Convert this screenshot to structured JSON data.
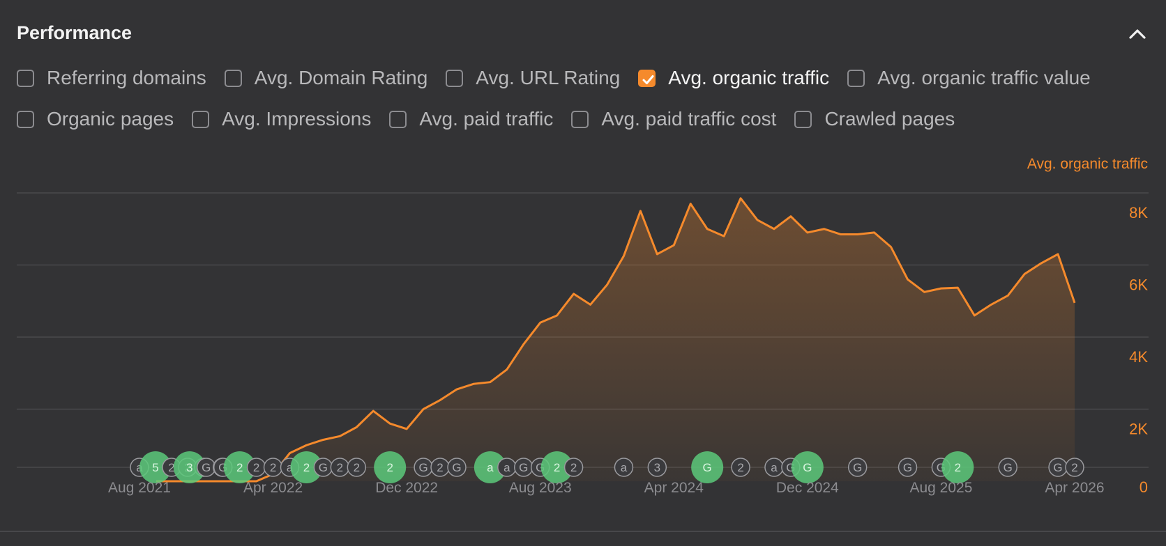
{
  "panel": {
    "title": "Performance",
    "collapse_icon": "chevron-up-icon"
  },
  "metrics_row1": [
    {
      "label": "Referring domains",
      "checked": false
    },
    {
      "label": "Avg. Domain Rating",
      "checked": false
    },
    {
      "label": "Avg. URL Rating",
      "checked": false
    },
    {
      "label": "Avg. organic traffic",
      "checked": true
    },
    {
      "label": "Avg. organic traffic value",
      "checked": false
    }
  ],
  "metrics_row2": [
    {
      "label": "Organic pages",
      "checked": false
    },
    {
      "label": "Avg. Impressions",
      "checked": false
    },
    {
      "label": "Avg. paid traffic",
      "checked": false
    },
    {
      "label": "Avg. paid traffic cost",
      "checked": false
    },
    {
      "label": "Crawled pages",
      "checked": false
    }
  ],
  "colors": {
    "accent": "#f58a2c",
    "background": "#333335",
    "grid": "#4a4a4d",
    "annotation_green": "#5cc97a",
    "annotation_dark_green": "#5a8f3e",
    "annotation_outline": "#9a9a9e"
  },
  "chart_data": {
    "type": "area",
    "title": "",
    "ylabel": "Avg. organic traffic",
    "xlabel": "",
    "ylim": [
      0,
      8000
    ],
    "grid": true,
    "y_ticks": [
      "0",
      "2K",
      "4K",
      "6K",
      "8K"
    ],
    "y_tick_values": [
      0,
      2000,
      4000,
      6000,
      8000
    ],
    "x_ticks": [
      "Aug 2021",
      "Apr 2022",
      "Dec 2022",
      "Aug 2023",
      "Apr 2024",
      "Dec 2024",
      "Aug 2025",
      "Apr 2026"
    ],
    "x_tick_dates": [
      "2021-08",
      "2022-04",
      "2022-12",
      "2023-08",
      "2024-04",
      "2024-12",
      "2025-08",
      "2026-04"
    ],
    "series": [
      {
        "name": "Avg. organic traffic",
        "x": [
          "2021-09",
          "2021-10",
          "2021-11",
          "2021-12",
          "2022-01",
          "2022-02",
          "2022-03",
          "2022-04",
          "2022-05",
          "2022-06",
          "2022-07",
          "2022-08",
          "2022-09",
          "2022-10",
          "2022-11",
          "2022-12",
          "2023-01",
          "2023-02",
          "2023-03",
          "2023-04",
          "2023-05",
          "2023-06",
          "2023-07",
          "2023-08",
          "2023-09",
          "2023-10",
          "2023-11",
          "2023-12",
          "2024-01",
          "2024-02",
          "2024-03",
          "2024-04",
          "2024-05",
          "2024-06",
          "2024-07",
          "2024-08",
          "2024-09",
          "2024-10",
          "2024-11",
          "2024-12",
          "2025-01",
          "2025-02",
          "2025-03",
          "2025-04",
          "2025-05",
          "2025-06",
          "2025-07",
          "2025-08",
          "2025-09",
          "2025-10",
          "2025-11",
          "2025-12",
          "2026-01",
          "2026-02",
          "2026-03",
          "2026-04"
        ],
        "values": [
          0,
          0,
          0,
          0,
          0,
          0,
          0,
          200,
          780,
          1000,
          1150,
          1250,
          1500,
          1950,
          1600,
          1450,
          2000,
          2250,
          2550,
          2700,
          2750,
          3100,
          3800,
          4400,
          4600,
          5200,
          4900,
          5450,
          6250,
          7500,
          6300,
          6550,
          7700,
          7000,
          6800,
          7850,
          7250,
          7000,
          7350,
          6900,
          7000,
          6850,
          6850,
          6900,
          6500,
          5600,
          5250,
          5350,
          5370,
          4600,
          4900,
          5150,
          5750,
          6050,
          6300,
          4950
        ]
      }
    ],
    "event_markers": [
      {
        "date": "2021-08",
        "label": "a"
      },
      {
        "date": "2021-08",
        "label": "5"
      },
      {
        "date": "2021-08",
        "label": "2"
      },
      {
        "date": "2021-08",
        "label": "2"
      },
      {
        "date": "2021-08",
        "label": "a"
      },
      {
        "date": "2021-11",
        "label": "3"
      },
      {
        "date": "2021-12",
        "label": "G"
      },
      {
        "date": "2021-12",
        "label": "a"
      },
      {
        "date": "2022-01",
        "label": "G"
      },
      {
        "date": "2022-02",
        "label": "2"
      },
      {
        "date": "2022-03",
        "label": "2"
      },
      {
        "date": "2022-04",
        "label": "2"
      },
      {
        "date": "2022-05",
        "label": "a"
      },
      {
        "date": "2022-06",
        "label": "2"
      },
      {
        "date": "2022-07",
        "label": "G"
      },
      {
        "date": "2022-08",
        "label": "2"
      },
      {
        "date": "2022-09",
        "label": "2"
      },
      {
        "date": "2022-11",
        "label": "2"
      },
      {
        "date": "2023-01",
        "label": "G"
      },
      {
        "date": "2023-02",
        "label": "2"
      },
      {
        "date": "2023-03",
        "label": "G"
      },
      {
        "date": "2023-05",
        "label": "a"
      },
      {
        "date": "2023-06",
        "label": "a"
      },
      {
        "date": "2023-07",
        "label": "G"
      },
      {
        "date": "2023-08",
        "label": "G"
      },
      {
        "date": "2023-09",
        "label": "2"
      },
      {
        "date": "2023-10",
        "label": "2"
      },
      {
        "date": "2024-01",
        "label": "a"
      },
      {
        "date": "2024-03",
        "label": "3"
      },
      {
        "date": "2024-06",
        "label": "G"
      },
      {
        "date": "2024-08",
        "label": "2"
      },
      {
        "date": "2024-10",
        "label": "a"
      },
      {
        "date": "2024-11",
        "label": "G"
      },
      {
        "date": "2024-12",
        "label": "G"
      },
      {
        "date": "2025-03",
        "label": "G"
      },
      {
        "date": "2025-06",
        "label": "G"
      },
      {
        "date": "2025-08",
        "label": "G"
      },
      {
        "date": "2025-09",
        "label": "2"
      },
      {
        "date": "2025-12",
        "label": "G"
      },
      {
        "date": "2026-03",
        "label": "G"
      },
      {
        "date": "2026-04",
        "label": "2"
      }
    ]
  }
}
